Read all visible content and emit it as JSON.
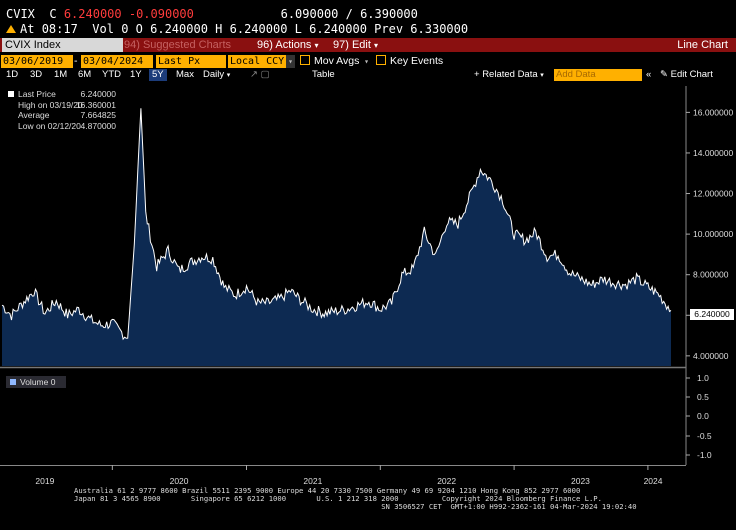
{
  "ticker": {
    "symbol": "CVIX",
    "c_label": "C",
    "last": "6.240000",
    "change": "-0.090000",
    "bid_ask": "6.090000 / 6.390000",
    "at_label": "At",
    "time": "08:17",
    "vol_label": "Vol",
    "vol_value": "0",
    "o_label": "O",
    "open": "6.240000",
    "h_label": "H",
    "high": "6.240000",
    "l_label": "L",
    "low": "6.240000",
    "prev_label": "Prev",
    "prev": "6.330000"
  },
  "titlebar": {
    "security": "CVIX Index",
    "suggested_num": "94)",
    "suggested_label": "Suggested Charts",
    "actions_num": "96)",
    "actions_label": "Actions",
    "edit_num": "97)",
    "edit_label": "Edit",
    "chart_type": "Line Chart"
  },
  "fields": {
    "start_date": "03/06/2019",
    "end_date": "03/04/2024",
    "price_field": "Last Px",
    "currency": "Local CCY",
    "mov_avgs": "Mov Avgs",
    "key_events": "Key Events"
  },
  "range": {
    "buttons": [
      "1D",
      "3D",
      "1M",
      "6M",
      "YTD",
      "1Y",
      "5Y",
      "Max"
    ],
    "active": "5Y",
    "period": "Daily",
    "table": "Table",
    "related_data": "Related Data",
    "add_data_placeholder": "Add Data",
    "edit_chart": "Edit Chart"
  },
  "legend": {
    "last_price_label": "Last Price",
    "last_price_value": "6.240000",
    "high_label": "High on 03/19/20",
    "high_value": "16.360001",
    "average_label": "Average",
    "average_value": "7.664825",
    "low_label": "Low on 02/12/20",
    "low_value": "4.870000",
    "volume_label": "Volume",
    "volume_value": "0"
  },
  "colors": {
    "accent_orange": "#ffb000",
    "title_red": "#8a1010",
    "area_fill": "#0d2a52",
    "line": "#ffffff"
  },
  "footer": {
    "line1": "Australia 61 2 9777 8600 Brazil 5511 2395 9000 Europe 44 20 7330 7500 Germany 49 69 9204 1210 Hong Kong 852 2977 6000",
    "line2": "Japan 81 3 4565 8900       Singapore 65 6212 1000       U.S. 1 212 318 2000          Copyright 2024 Bloomberg Finance L.P.",
    "line3": "                                                                       SN 3506527 CET  GMT+1:00 H992-2362-161 04-Mar-2024 19:02:40"
  },
  "chart_data": {
    "type": "area",
    "title": "",
    "xlabel": "",
    "ylabel": "",
    "ylim": [
      3.5,
      17.3
    ],
    "y_ticks": [
      "4.000000",
      "6.000000",
      "8.000000",
      "10.000000",
      "12.000000",
      "14.000000",
      "16.000000"
    ],
    "x_ticks": [
      "2019",
      "2020",
      "2021",
      "2022",
      "2023",
      "2024"
    ],
    "last_value_label": "6.240000",
    "volume_ticks": [
      "1.0",
      "0.5",
      "0.0",
      "-0.5",
      "-1.0"
    ],
    "series": [
      {
        "name": "Last Price",
        "x": [
          "2019-03-06",
          "2019-04-01",
          "2019-05-01",
          "2019-06-01",
          "2019-07-01",
          "2019-08-01",
          "2019-09-01",
          "2019-10-01",
          "2019-11-01",
          "2019-12-01",
          "2020-01-01",
          "2020-02-12",
          "2020-03-01",
          "2020-03-19",
          "2020-04-01",
          "2020-05-01",
          "2020-06-01",
          "2020-07-01",
          "2020-08-01",
          "2020-09-01",
          "2020-10-01",
          "2020-11-01",
          "2020-12-01",
          "2021-01-01",
          "2021-02-01",
          "2021-03-01",
          "2021-04-01",
          "2021-05-01",
          "2021-06-01",
          "2021-07-01",
          "2021-08-01",
          "2021-09-01",
          "2021-10-01",
          "2021-11-01",
          "2021-12-01",
          "2022-01-01",
          "2022-02-01",
          "2022-03-01",
          "2022-04-01",
          "2022-05-01",
          "2022-06-01",
          "2022-07-01",
          "2022-08-01",
          "2022-09-01",
          "2022-10-01",
          "2022-11-01",
          "2022-12-01",
          "2023-01-01",
          "2023-02-01",
          "2023-03-01",
          "2023-04-01",
          "2023-05-01",
          "2023-06-01",
          "2023-07-01",
          "2023-08-01",
          "2023-09-01",
          "2023-10-01",
          "2023-11-01",
          "2023-12-01",
          "2024-01-01",
          "2024-02-01",
          "2024-03-04"
        ],
        "values": [
          6.5,
          6.0,
          6.6,
          7.2,
          6.1,
          6.7,
          6.0,
          6.3,
          5.8,
          5.5,
          5.6,
          4.87,
          9.5,
          16.36,
          11.0,
          8.4,
          9.2,
          8.2,
          8.6,
          8.9,
          8.8,
          7.4,
          7.0,
          7.4,
          6.6,
          6.6,
          6.8,
          7.2,
          6.7,
          6.3,
          6.1,
          6.2,
          6.3,
          6.5,
          6.7,
          6.3,
          6.6,
          8.0,
          8.3,
          10.1,
          8.9,
          10.6,
          10.5,
          11.8,
          13.2,
          12.6,
          11.7,
          10.0,
          9.7,
          10.1,
          8.9,
          9.0,
          8.1,
          7.8,
          7.5,
          7.8,
          7.6,
          7.5,
          7.8,
          7.4,
          7.0,
          6.24
        ]
      }
    ]
  }
}
